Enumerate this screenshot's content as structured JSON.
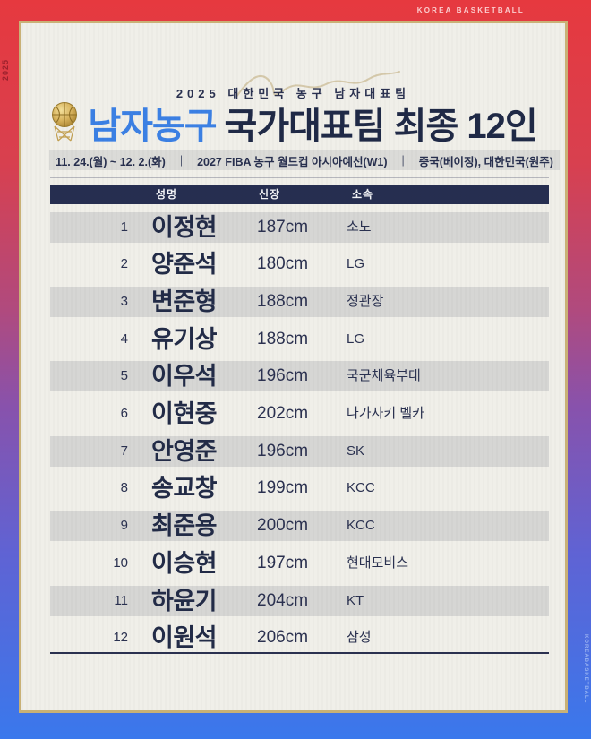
{
  "frame": {
    "korea_basketball": "KOREA BASKETBALL",
    "left_year": "2025",
    "right_watermark": "KOREABASKETBALL"
  },
  "header": {
    "pre_title": "2025 대한민국 농구 남자대표팀",
    "title_blue": "남자농구",
    "title_dark": "국가대표팀 최종 12인",
    "info": {
      "dates": "11. 24.(월) ~ 12. 2.(화)",
      "separator": "|",
      "event": "2027 FIBA 농구 월드컵 아시아예선(W1)",
      "venues": "중국(베이징), 대한민국(원주)"
    }
  },
  "table": {
    "columns": [
      "성명",
      "신장",
      "소속"
    ],
    "rows": [
      {
        "no": "1",
        "name": "이정현",
        "height": "187cm",
        "team": "소노"
      },
      {
        "no": "2",
        "name": "양준석",
        "height": "180cm",
        "team": "LG"
      },
      {
        "no": "3",
        "name": "변준형",
        "height": "188cm",
        "team": "정관장"
      },
      {
        "no": "4",
        "name": "유기상",
        "height": "188cm",
        "team": "LG"
      },
      {
        "no": "5",
        "name": "이우석",
        "height": "196cm",
        "team": "국군체육부대"
      },
      {
        "no": "6",
        "name": "이현중",
        "height": "202cm",
        "team": "나가사키 벨카"
      },
      {
        "no": "7",
        "name": "안영준",
        "height": "196cm",
        "team": "SK"
      },
      {
        "no": "8",
        "name": "송교창",
        "height": "199cm",
        "team": "KCC"
      },
      {
        "no": "9",
        "name": "최준용",
        "height": "200cm",
        "team": "KCC"
      },
      {
        "no": "10",
        "name": "이승현",
        "height": "197cm",
        "team": "현대모비스"
      },
      {
        "no": "11",
        "name": "하윤기",
        "height": "204cm",
        "team": "KT"
      },
      {
        "no": "12",
        "name": "이원석",
        "height": "206cm",
        "team": "삼성"
      }
    ]
  },
  "icons": {
    "ball_icon": "gold-basketball-with-net"
  },
  "colors": {
    "border_red": "#e6393f",
    "border_blue": "#3a78ec",
    "gold": "#c9b176",
    "paper": "#f0efe9",
    "navy": "#262e50",
    "title_blue": "#3b80e4",
    "title_dark": "#1f2946",
    "stripe_gray": "#d6d6d4",
    "info_bar_gray": "#dbdbd8"
  }
}
